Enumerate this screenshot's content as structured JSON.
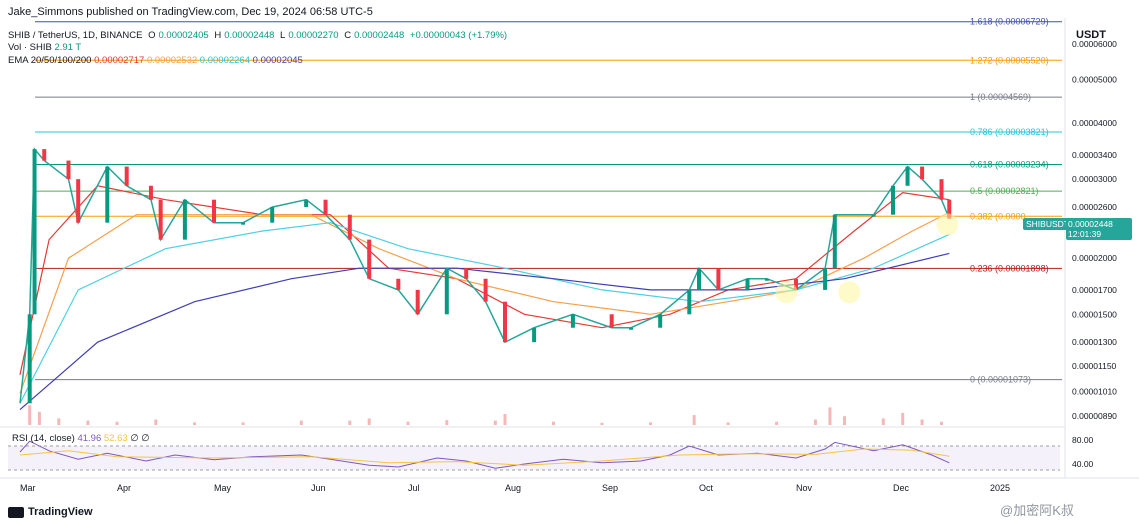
{
  "header": {
    "publisher": "Jake_Simmons published on TradingView.com, Dec 19, 2024 06:58 UTC-5"
  },
  "ohlc": {
    "symbol": "SHIB / TetherUS, 1D, BINANCE",
    "o_label": "O",
    "o": "0.00002405",
    "h_label": "H",
    "h": "0.00002448",
    "l_label": "L",
    "l": "0.00002270",
    "c_label": "C",
    "c": "0.00002448",
    "change": "+0.00000043 (+1.79%)"
  },
  "volume": {
    "label": "Vol · SHIB",
    "value": "2.91 T"
  },
  "ema": {
    "label": "EMA 20/50/100/200",
    "values": [
      "0.00002717",
      "0.00002532",
      "0.00002264",
      "0.00002045"
    ],
    "colors": [
      "#e53935",
      "#f5a04a",
      "#4dd0e1",
      "#3f3fb5"
    ]
  },
  "rsi": {
    "label": "RSI (14, close)",
    "value": "41.96",
    "ma": "52.63",
    "icon1": "∅",
    "icon2": "∅"
  },
  "axis": {
    "unit": "USDT",
    "ticks": [
      "0.00006000",
      "0.00005000",
      "0.00004000",
      "0.00003400",
      "0.00003000",
      "0.00002600",
      "0.00002000",
      "0.00001700",
      "0.00001500",
      "0.00001300",
      "0.00001150",
      "0.00001010",
      "0.00000890"
    ],
    "rsi_ticks": [
      "80.00",
      "40.00"
    ],
    "months": [
      "Mar",
      "Apr",
      "May",
      "Jun",
      "Jul",
      "Aug",
      "Sep",
      "Oct",
      "Nov",
      "Dec",
      "2025"
    ]
  },
  "last_price": {
    "symbol": "SHIBUSDT",
    "price": "0.00002448",
    "countdown": "12:01:39"
  },
  "watermark": "@加密阿K叔",
  "brand": "TradingView",
  "chart_data": {
    "type": "line",
    "title": "SHIB / TetherUS, 1D, BINANCE",
    "scale": "log",
    "ylim": [
      8.5e-06,
      7e-05
    ],
    "fib_levels": [
      {
        "label": "1.618 (0.00006729)",
        "value": 6.729e-05,
        "color": "#3f51b5"
      },
      {
        "label": "1.272 (0.00005520)",
        "value": 5.52e-05,
        "color": "#f59e0b"
      },
      {
        "label": "1 (0.00004569)",
        "value": 4.569e-05,
        "color": "#787b86"
      },
      {
        "label": "0.786 (0.00003821)",
        "value": 3.821e-05,
        "color": "#26c6da"
      },
      {
        "label": "0.618 (0.00003234)",
        "value": 3.234e-05,
        "color": "#089981"
      },
      {
        "label": "0.5 (0.00002821)",
        "value": 2.821e-05,
        "color": "#4caf50"
      },
      {
        "label": "0.382 (0.0000",
        "value": 2.48e-05,
        "color": "#f59e0b"
      },
      {
        "label": "0.236 (0.00001898)",
        "value": 1.898e-05,
        "color": "#b71c1c"
      },
      {
        "label": "0 (0.00001073)",
        "value": 1.073e-05,
        "color": "#787b86"
      }
    ],
    "x_months": [
      "Mar",
      "Apr",
      "May",
      "Jun",
      "Jul",
      "Aug",
      "Sep",
      "Oct",
      "Nov",
      "Dec",
      "2025"
    ],
    "price_series": [
      {
        "m": 0.0,
        "p": 9.5e-06
      },
      {
        "m": 0.1,
        "p": 1.5e-05
      },
      {
        "m": 0.15,
        "p": 3.5e-05
      },
      {
        "m": 0.25,
        "p": 3.3e-05
      },
      {
        "m": 0.5,
        "p": 3e-05
      },
      {
        "m": 0.6,
        "p": 2.4e-05
      },
      {
        "m": 0.9,
        "p": 3.2e-05
      },
      {
        "m": 1.1,
        "p": 2.9e-05
      },
      {
        "m": 1.35,
        "p": 2.7e-05
      },
      {
        "m": 1.45,
        "p": 2.2e-05
      },
      {
        "m": 1.7,
        "p": 2.7e-05
      },
      {
        "m": 2.0,
        "p": 2.4e-05
      },
      {
        "m": 2.3,
        "p": 2.4e-05
      },
      {
        "m": 2.6,
        "p": 2.6e-05
      },
      {
        "m": 2.95,
        "p": 2.7e-05
      },
      {
        "m": 3.15,
        "p": 2.5e-05
      },
      {
        "m": 3.4,
        "p": 2.2e-05
      },
      {
        "m": 3.6,
        "p": 1.8e-05
      },
      {
        "m": 3.9,
        "p": 1.7e-05
      },
      {
        "m": 4.1,
        "p": 1.5e-05
      },
      {
        "m": 4.4,
        "p": 1.9e-05
      },
      {
        "m": 4.6,
        "p": 1.8e-05
      },
      {
        "m": 4.8,
        "p": 1.6e-05
      },
      {
        "m": 5.0,
        "p": 1.3e-05
      },
      {
        "m": 5.3,
        "p": 1.4e-05
      },
      {
        "m": 5.7,
        "p": 1.5e-05
      },
      {
        "m": 6.1,
        "p": 1.4e-05
      },
      {
        "m": 6.3,
        "p": 1.4e-05
      },
      {
        "m": 6.6,
        "p": 1.5e-05
      },
      {
        "m": 6.9,
        "p": 1.7e-05
      },
      {
        "m": 7.0,
        "p": 1.9e-05
      },
      {
        "m": 7.2,
        "p": 1.7e-05
      },
      {
        "m": 7.5,
        "p": 1.8e-05
      },
      {
        "m": 7.7,
        "p": 1.8e-05
      },
      {
        "m": 8.0,
        "p": 1.7e-05
      },
      {
        "m": 8.3,
        "p": 1.9e-05
      },
      {
        "m": 8.4,
        "p": 2.5e-05
      },
      {
        "m": 8.8,
        "p": 2.5e-05
      },
      {
        "m": 9.0,
        "p": 2.9e-05
      },
      {
        "m": 9.15,
        "p": 3.2e-05
      },
      {
        "m": 9.3,
        "p": 3e-05
      },
      {
        "m": 9.5,
        "p": 2.7e-05
      },
      {
        "m": 9.58,
        "p": 2.45e-05
      }
    ],
    "series": [
      {
        "name": "EMA 20",
        "color": "#e53935",
        "values": [
          {
            "m": 0.0,
            "p": 1.1e-05
          },
          {
            "m": 0.3,
            "p": 2.2e-05
          },
          {
            "m": 0.8,
            "p": 2.9e-05
          },
          {
            "m": 1.5,
            "p": 2.7e-05
          },
          {
            "m": 2.5,
            "p": 2.5e-05
          },
          {
            "m": 3.2,
            "p": 2.5e-05
          },
          {
            "m": 3.8,
            "p": 1.9e-05
          },
          {
            "m": 4.5,
            "p": 1.8e-05
          },
          {
            "m": 5.2,
            "p": 1.5e-05
          },
          {
            "m": 6.0,
            "p": 1.4e-05
          },
          {
            "m": 6.7,
            "p": 1.5e-05
          },
          {
            "m": 7.3,
            "p": 1.7e-05
          },
          {
            "m": 8.0,
            "p": 1.8e-05
          },
          {
            "m": 8.6,
            "p": 2.3e-05
          },
          {
            "m": 9.1,
            "p": 2.8e-05
          },
          {
            "m": 9.58,
            "p": 2.7e-05
          }
        ]
      },
      {
        "name": "EMA 50",
        "color": "#f5a04a",
        "values": [
          {
            "m": 0.0,
            "p": 1e-05
          },
          {
            "m": 0.5,
            "p": 2e-05
          },
          {
            "m": 1.2,
            "p": 2.5e-05
          },
          {
            "m": 2.0,
            "p": 2.5e-05
          },
          {
            "m": 3.0,
            "p": 2.5e-05
          },
          {
            "m": 3.7,
            "p": 2.1e-05
          },
          {
            "m": 4.5,
            "p": 1.8e-05
          },
          {
            "m": 5.5,
            "p": 1.6e-05
          },
          {
            "m": 6.5,
            "p": 1.5e-05
          },
          {
            "m": 7.3,
            "p": 1.6e-05
          },
          {
            "m": 8.0,
            "p": 1.7e-05
          },
          {
            "m": 8.7,
            "p": 2e-05
          },
          {
            "m": 9.2,
            "p": 2.3e-05
          },
          {
            "m": 9.58,
            "p": 2.53e-05
          }
        ]
      },
      {
        "name": "EMA 100",
        "color": "#4dd0e1",
        "values": [
          {
            "m": 0.0,
            "p": 9.5e-06
          },
          {
            "m": 0.6,
            "p": 1.7e-05
          },
          {
            "m": 1.5,
            "p": 2.1e-05
          },
          {
            "m": 2.5,
            "p": 2.3e-05
          },
          {
            "m": 3.2,
            "p": 2.4e-05
          },
          {
            "m": 4.0,
            "p": 2.1e-05
          },
          {
            "m": 5.0,
            "p": 1.9e-05
          },
          {
            "m": 6.0,
            "p": 1.7e-05
          },
          {
            "m": 7.0,
            "p": 1.6e-05
          },
          {
            "m": 8.0,
            "p": 1.7e-05
          },
          {
            "m": 8.8,
            "p": 1.9e-05
          },
          {
            "m": 9.58,
            "p": 2.26e-05
          }
        ]
      },
      {
        "name": "EMA 200",
        "color": "#3f3fb5",
        "values": [
          {
            "m": 0.0,
            "p": 9.2e-06
          },
          {
            "m": 0.8,
            "p": 1.3e-05
          },
          {
            "m": 1.8,
            "p": 1.6e-05
          },
          {
            "m": 2.8,
            "p": 1.8e-05
          },
          {
            "m": 3.5,
            "p": 1.9e-05
          },
          {
            "m": 4.5,
            "p": 1.9e-05
          },
          {
            "m": 5.5,
            "p": 1.8e-05
          },
          {
            "m": 6.5,
            "p": 1.7e-05
          },
          {
            "m": 7.5,
            "p": 1.7e-05
          },
          {
            "m": 8.5,
            "p": 1.8e-05
          },
          {
            "m": 9.58,
            "p": 2.05e-05
          }
        ]
      }
    ],
    "rsi_series": [
      {
        "m": 0.0,
        "v": 60
      },
      {
        "m": 0.1,
        "v": 78
      },
      {
        "m": 0.3,
        "v": 62
      },
      {
        "m": 0.6,
        "v": 48
      },
      {
        "m": 0.9,
        "v": 58
      },
      {
        "m": 1.3,
        "v": 45
      },
      {
        "m": 1.6,
        "v": 55
      },
      {
        "m": 2.0,
        "v": 47
      },
      {
        "m": 2.4,
        "v": 52
      },
      {
        "m": 2.9,
        "v": 55
      },
      {
        "m": 3.2,
        "v": 48
      },
      {
        "m": 3.6,
        "v": 38
      },
      {
        "m": 3.9,
        "v": 35
      },
      {
        "m": 4.3,
        "v": 50
      },
      {
        "m": 4.6,
        "v": 45
      },
      {
        "m": 4.9,
        "v": 33
      },
      {
        "m": 5.2,
        "v": 40
      },
      {
        "m": 5.6,
        "v": 48
      },
      {
        "m": 6.0,
        "v": 42
      },
      {
        "m": 6.4,
        "v": 45
      },
      {
        "m": 6.7,
        "v": 55
      },
      {
        "m": 6.9,
        "v": 70
      },
      {
        "m": 7.2,
        "v": 55
      },
      {
        "m": 7.6,
        "v": 58
      },
      {
        "m": 8.0,
        "v": 50
      },
      {
        "m": 8.3,
        "v": 65
      },
      {
        "m": 8.4,
        "v": 76
      },
      {
        "m": 8.8,
        "v": 62
      },
      {
        "m": 9.1,
        "v": 72
      },
      {
        "m": 9.4,
        "v": 55
      },
      {
        "m": 9.58,
        "v": 42
      }
    ],
    "rsi_ma_series": [
      {
        "m": 0.0,
        "v": 55
      },
      {
        "m": 0.5,
        "v": 62
      },
      {
        "m": 1.0,
        "v": 52
      },
      {
        "m": 2.0,
        "v": 50
      },
      {
        "m": 3.0,
        "v": 52
      },
      {
        "m": 3.8,
        "v": 42
      },
      {
        "m": 4.5,
        "v": 44
      },
      {
        "m": 5.2,
        "v": 38
      },
      {
        "m": 6.0,
        "v": 45
      },
      {
        "m": 6.8,
        "v": 55
      },
      {
        "m": 7.5,
        "v": 57
      },
      {
        "m": 8.2,
        "v": 56
      },
      {
        "m": 8.7,
        "v": 65
      },
      {
        "m": 9.2,
        "v": 63
      },
      {
        "m": 9.58,
        "v": 53
      }
    ],
    "volume_series": [
      {
        "m": 0.1,
        "v": 0.9
      },
      {
        "m": 0.2,
        "v": 0.6
      },
      {
        "m": 0.4,
        "v": 0.3
      },
      {
        "m": 0.7,
        "v": 0.2
      },
      {
        "m": 1.0,
        "v": 0.15
      },
      {
        "m": 1.4,
        "v": 0.25
      },
      {
        "m": 1.8,
        "v": 0.12
      },
      {
        "m": 2.3,
        "v": 0.12
      },
      {
        "m": 2.9,
        "v": 0.2
      },
      {
        "m": 3.4,
        "v": 0.2
      },
      {
        "m": 3.6,
        "v": 0.3
      },
      {
        "m": 4.0,
        "v": 0.15
      },
      {
        "m": 4.4,
        "v": 0.22
      },
      {
        "m": 4.9,
        "v": 0.2
      },
      {
        "m": 5.0,
        "v": 0.5
      },
      {
        "m": 5.5,
        "v": 0.15
      },
      {
        "m": 6.0,
        "v": 0.1
      },
      {
        "m": 6.5,
        "v": 0.12
      },
      {
        "m": 6.95,
        "v": 0.45
      },
      {
        "m": 7.3,
        "v": 0.12
      },
      {
        "m": 7.8,
        "v": 0.15
      },
      {
        "m": 8.2,
        "v": 0.25
      },
      {
        "m": 8.35,
        "v": 0.8
      },
      {
        "m": 8.5,
        "v": 0.4
      },
      {
        "m": 8.9,
        "v": 0.3
      },
      {
        "m": 9.1,
        "v": 0.55
      },
      {
        "m": 9.3,
        "v": 0.25
      },
      {
        "m": 9.5,
        "v": 0.15
      }
    ]
  }
}
